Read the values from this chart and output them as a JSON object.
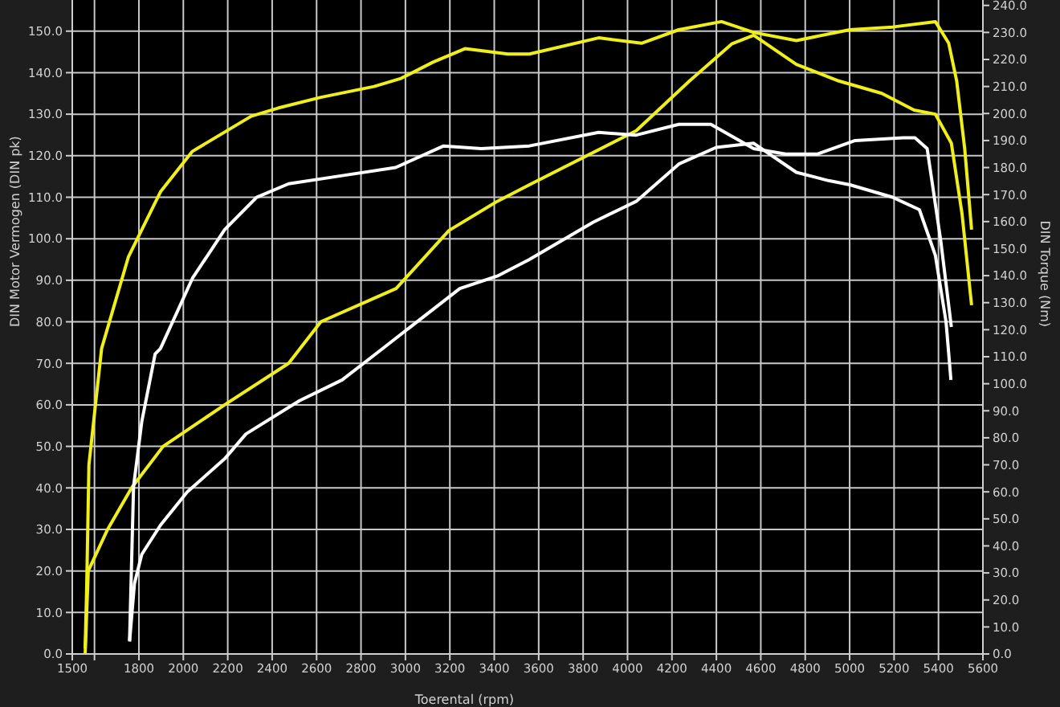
{
  "chart_data": {
    "type": "line",
    "xlabel": "Toerental (rpm)",
    "ylabel": "DIN Motor Vermogen (DIN pk)",
    "y2label": "DIN Torque (Nm)",
    "grid": true,
    "line_style": "solid",
    "xlim": [
      1500,
      5600
    ],
    "xticks": [
      1500,
      {
        "value": 1600,
        "label": null
      },
      1800,
      2000,
      2200,
      2400,
      2600,
      2800,
      3000,
      3200,
      3400,
      3600,
      3800,
      4000,
      4200,
      4400,
      4600,
      4800,
      5000,
      5200,
      5400,
      5600
    ],
    "ylim": [
      0,
      157.5
    ],
    "yticks": [
      {
        "value": 0,
        "label": "0.0"
      },
      {
        "value": 10,
        "label": "10.0"
      },
      {
        "value": 20,
        "label": "20.0"
      },
      {
        "value": 30,
        "label": "30.0"
      },
      {
        "value": 40,
        "label": "40.0"
      },
      {
        "value": 50,
        "label": "50.0"
      },
      {
        "value": 60,
        "label": "60.0"
      },
      {
        "value": 70,
        "label": "70.0"
      },
      {
        "value": 80,
        "label": "80.0"
      },
      {
        "value": 90,
        "label": "90.0"
      },
      {
        "value": 100,
        "label": "100.0"
      },
      {
        "value": 110,
        "label": "110.0"
      },
      {
        "value": 120,
        "label": "120.0"
      },
      {
        "value": 130,
        "label": "130.0"
      },
      {
        "value": 140,
        "label": "140.0"
      },
      {
        "value": 150,
        "label": "150.0"
      }
    ],
    "y2lim": [
      0,
      242
    ],
    "y2ticks": [
      {
        "value": 0,
        "label": "0.0"
      },
      {
        "value": 10,
        "label": "10.0"
      },
      {
        "value": 20,
        "label": "20.0"
      },
      {
        "value": 30,
        "label": "30.0"
      },
      {
        "value": 40,
        "label": "40.0"
      },
      {
        "value": 50,
        "label": "50.0"
      },
      {
        "value": 60,
        "label": "60.0"
      },
      {
        "value": 70,
        "label": "70.0"
      },
      {
        "value": 80,
        "label": "80.0"
      },
      {
        "value": 90,
        "label": "90.0"
      },
      {
        "value": 100,
        "label": "100.0"
      },
      {
        "value": 110,
        "label": "110.0"
      },
      {
        "value": 120,
        "label": "120.0"
      },
      {
        "value": 130,
        "label": "130.0"
      },
      {
        "value": 140,
        "label": "140.0"
      },
      {
        "value": 150,
        "label": "150.0"
      },
      {
        "value": 160,
        "label": "160.0"
      },
      {
        "value": 170,
        "label": "170.0"
      },
      {
        "value": 180,
        "label": "180.0"
      },
      {
        "value": 190,
        "label": "190.0"
      },
      {
        "value": 200,
        "label": "200.0"
      },
      {
        "value": 210,
        "label": "210.0"
      },
      {
        "value": 220,
        "label": "220.0"
      },
      {
        "value": 230,
        "label": "230.0"
      },
      {
        "value": 240,
        "label": "240.0"
      }
    ],
    "series": [
      {
        "color": "#f0f018",
        "x": [
          1558,
          1572,
          1659,
          1767,
          1909,
          2186,
          2474,
          2619,
          2958,
          3196,
          3413,
          3558,
          4039,
          4279,
          4471,
          4568,
          4760,
          4951,
          5145,
          5290,
          5386,
          5458,
          5506,
          5549
        ],
        "values": [
          0,
          20,
          30,
          40,
          50,
          60,
          70,
          80,
          88,
          102,
          109,
          113,
          126,
          138,
          147,
          149,
          142,
          138,
          135,
          131,
          130,
          123,
          106,
          84
        ]
      },
      {
        "color": "#f0f018",
        "axis": "y2",
        "x": [
          1558,
          1565,
          1575,
          1632,
          1753,
          1897,
          2041,
          2306,
          2426,
          2619,
          2859,
          2980,
          3124,
          3268,
          3461,
          3558,
          3870,
          4063,
          4231,
          4423,
          4568,
          4760,
          5001,
          5193,
          5386,
          5446,
          5482,
          5518,
          5549
        ],
        "values": [
          2,
          25,
          70,
          113,
          147,
          171,
          186,
          199,
          202,
          206,
          210,
          213,
          219,
          224,
          222,
          222,
          228,
          226,
          231,
          234,
          230,
          227,
          231,
          232,
          234,
          226,
          212,
          187,
          157
        ]
      },
      {
        "color": "#ffffff",
        "x": [
          1758,
          1780,
          1813,
          1897,
          2017,
          2186,
          2282,
          2523,
          2715,
          2884,
          3245,
          3413,
          3558,
          3846,
          4039,
          4231,
          4399,
          4568,
          4760,
          4905,
          5001,
          5193,
          5314,
          5386,
          5434,
          5456
        ],
        "values": [
          3,
          17,
          24,
          31,
          39,
          47,
          53,
          61,
          66,
          73,
          88,
          91,
          95,
          104,
          109,
          118,
          122,
          123,
          116,
          114,
          113,
          110,
          107,
          96,
          80,
          66
        ]
      },
      {
        "color": "#ffffff",
        "axis": "y2",
        "x": [
          1758,
          1776,
          1813,
          1873,
          1897,
          2041,
          2186,
          2330,
          2474,
          2715,
          2956,
          3172,
          3341,
          3558,
          3870,
          4039,
          4231,
          4375,
          4568,
          4712,
          4856,
          5025,
          5241,
          5294,
          5349,
          5410,
          5458
        ],
        "values": [
          5,
          62,
          86,
          111,
          113,
          139,
          157,
          169,
          174,
          177,
          180,
          188,
          187,
          188,
          193,
          192,
          196,
          196,
          187,
          185,
          185,
          190,
          191,
          191,
          187,
          153,
          121
        ]
      }
    ]
  }
}
